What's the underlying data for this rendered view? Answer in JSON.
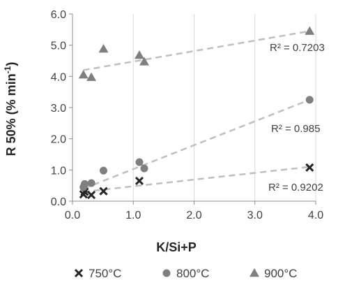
{
  "chart_data": {
    "type": "scatter",
    "xlabel": "K/Si+P",
    "ylabel_main": "R 50% (% min",
    "ylabel_sup": "-1",
    "ylabel_close": ")",
    "xlim": [
      0.0,
      4.0
    ],
    "ylim": [
      0.0,
      6.0
    ],
    "x_ticks": [
      0.0,
      1.0,
      2.0,
      3.0,
      4.0
    ],
    "x_tick_labels": [
      "0.0",
      "1.0",
      "2.0",
      "3.0",
      "4.0"
    ],
    "y_ticks": [
      0.0,
      1.0,
      2.0,
      3.0,
      4.0,
      5.0,
      6.0
    ],
    "y_tick_labels": [
      "0.0",
      "1.0",
      "2.0",
      "3.0",
      "4.0",
      "5.0",
      "6.0"
    ],
    "grid": "vertical",
    "legend_position": "bottom",
    "series": [
      {
        "name": "750°C",
        "marker": "x-mark",
        "color": "#262626",
        "x": [
          0.18,
          0.2,
          0.31,
          0.51,
          1.1,
          3.9
        ],
        "y": [
          0.22,
          0.3,
          0.2,
          0.32,
          0.65,
          1.08
        ],
        "trendline": {
          "x": [
            0.18,
            3.9
          ],
          "y": [
            0.3,
            1.1
          ]
        },
        "r2_label": "R² = 0.9202"
      },
      {
        "name": "800°C",
        "marker": "circle",
        "color": "#7f7f7f",
        "x": [
          0.18,
          0.2,
          0.31,
          0.51,
          1.1,
          1.18,
          3.9
        ],
        "y": [
          0.45,
          0.55,
          0.58,
          0.98,
          1.25,
          1.05,
          3.25
        ],
        "trendline": {
          "x": [
            0.18,
            3.9
          ],
          "y": [
            0.4,
            3.25
          ]
        },
        "r2_label": "R² = 0.985"
      },
      {
        "name": "900°C",
        "marker": "triangle",
        "color": "#7f7f7f",
        "x": [
          0.18,
          0.31,
          0.51,
          1.1,
          1.18,
          3.9
        ],
        "y": [
          4.05,
          3.97,
          4.88,
          4.68,
          4.47,
          5.45
        ],
        "trendline": {
          "x": [
            0.18,
            3.9
          ],
          "y": [
            4.2,
            5.45
          ]
        },
        "r2_label": "R² = 0.7203"
      }
    ]
  }
}
